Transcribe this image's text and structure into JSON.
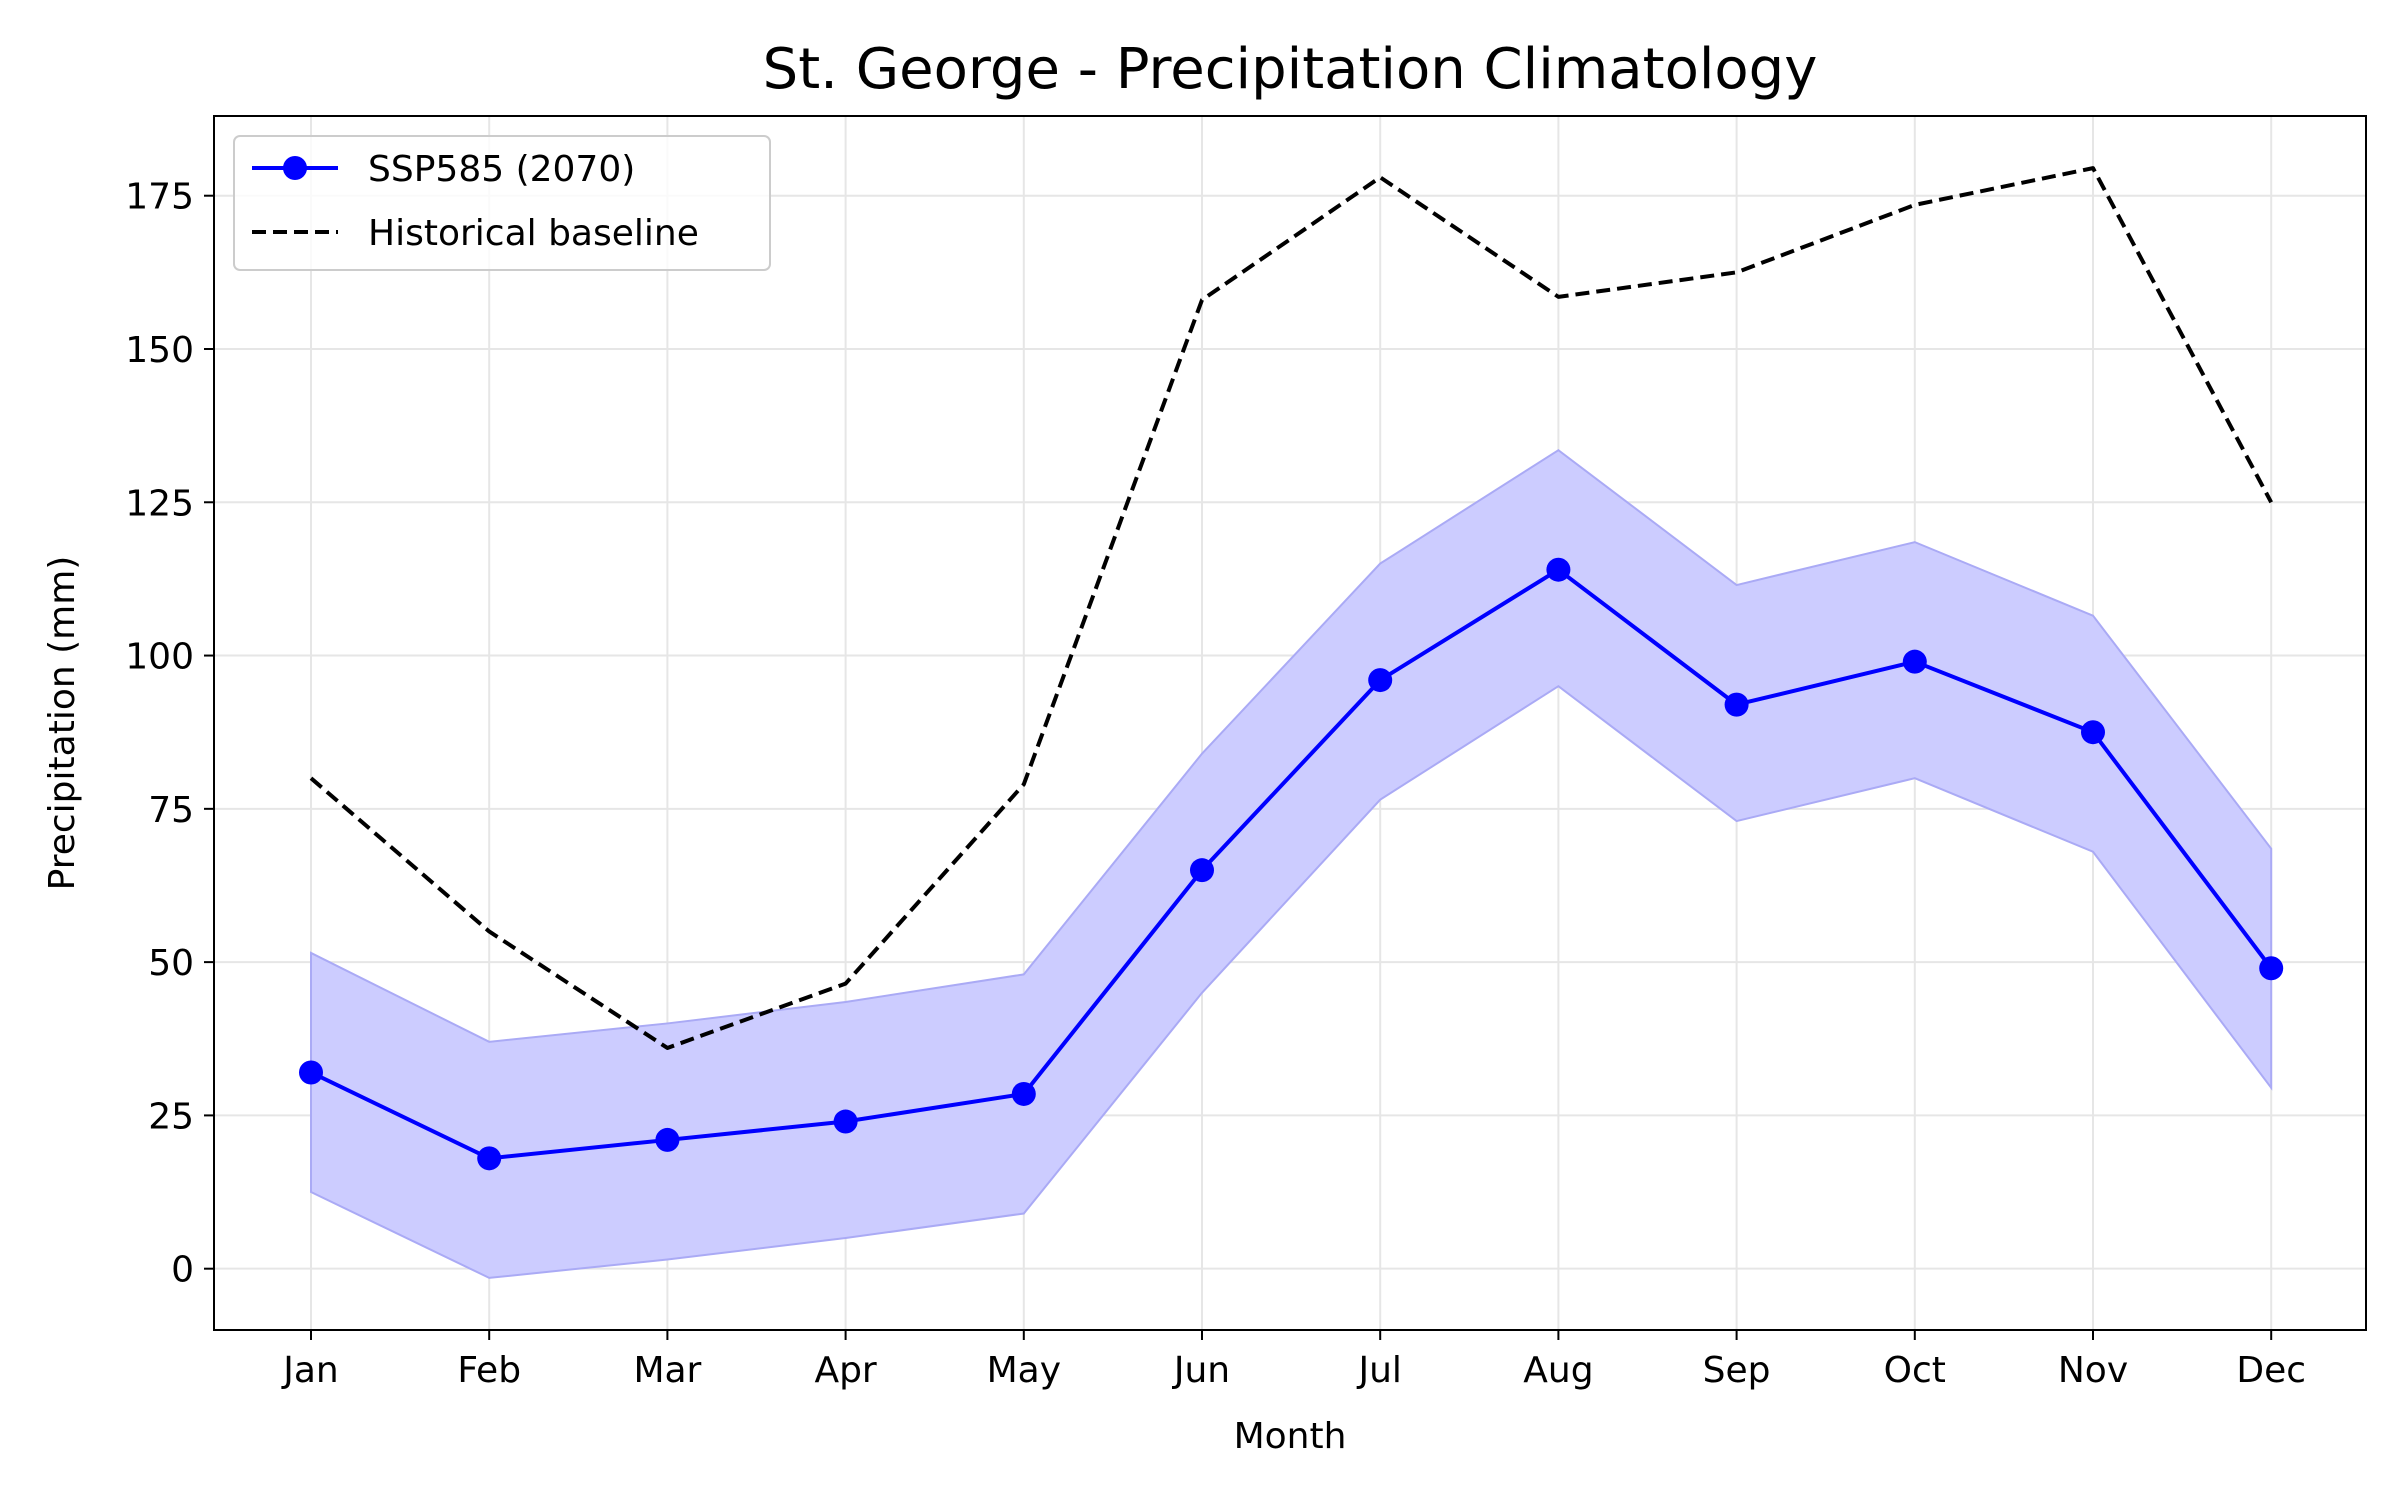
{
  "chart_data": {
    "type": "line",
    "title": "St. George - Precipitation Climatology",
    "xlabel": "Month",
    "ylabel": "Precipitation (mm)",
    "categories": [
      "Jan",
      "Feb",
      "Mar",
      "Apr",
      "May",
      "Jun",
      "Jul",
      "Aug",
      "Sep",
      "Oct",
      "Nov",
      "Dec"
    ],
    "ylim": [
      -10,
      188
    ],
    "yticks": [
      0,
      25,
      50,
      75,
      100,
      125,
      150,
      175
    ],
    "grid": true,
    "legend_position": "top-left",
    "series": [
      {
        "name": "SSP585 (2070)",
        "style": "solid-with-markers",
        "color": "#0000ff",
        "values": [
          32,
          18,
          21,
          24,
          28.5,
          65,
          96,
          114,
          92,
          99,
          87.5,
          49
        ],
        "band_lower": [
          12.5,
          -1.5,
          1.5,
          5,
          9,
          45,
          76.5,
          95,
          73,
          80,
          68,
          29.5
        ],
        "band_upper": [
          51.5,
          37,
          40,
          43.5,
          48,
          84,
          115,
          133.5,
          111.5,
          118.5,
          106.5,
          68.5
        ],
        "band_color": "#ccccff"
      },
      {
        "name": "Historical baseline",
        "style": "dashed",
        "color": "#000000",
        "values": [
          80,
          55,
          36,
          46.5,
          79,
          158,
          178,
          158.5,
          162.5,
          173.5,
          179.5,
          125
        ]
      }
    ]
  }
}
